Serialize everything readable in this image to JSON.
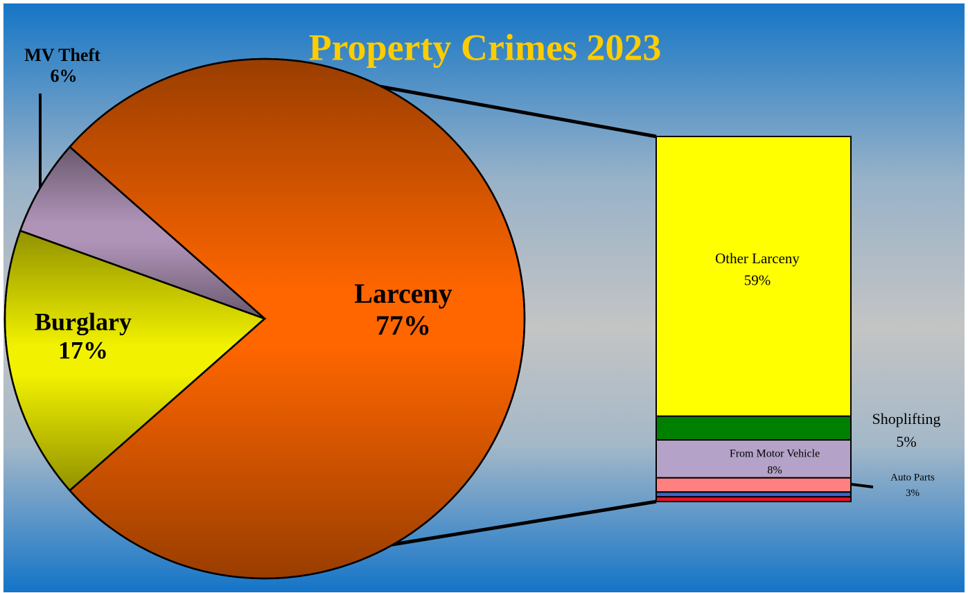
{
  "chart_data": [
    {
      "type": "pie",
      "title": "Property Crimes 2023",
      "categories": [
        "Larceny",
        "Burglary",
        "MV Theft"
      ],
      "values": [
        77,
        17,
        6
      ],
      "value_labels": [
        "77%",
        "17%",
        "6%"
      ],
      "colors": [
        "#ff6600",
        "#f2f200",
        "#b094b8"
      ]
    },
    {
      "type": "bar",
      "categories": [
        "Other Larceny",
        "Shoplifting",
        "From Motor Vehicle",
        "Auto Parts",
        null,
        null
      ],
      "values": [
        59,
        5,
        8,
        3,
        1,
        1
      ],
      "value_labels": [
        "59%",
        "5%",
        "8%",
        "3%",
        null,
        null
      ],
      "colors": [
        "#ffff00",
        "#008000",
        "#b4a2c8",
        "#ff8080",
        "#3366cc",
        "#e8102a"
      ]
    }
  ]
}
